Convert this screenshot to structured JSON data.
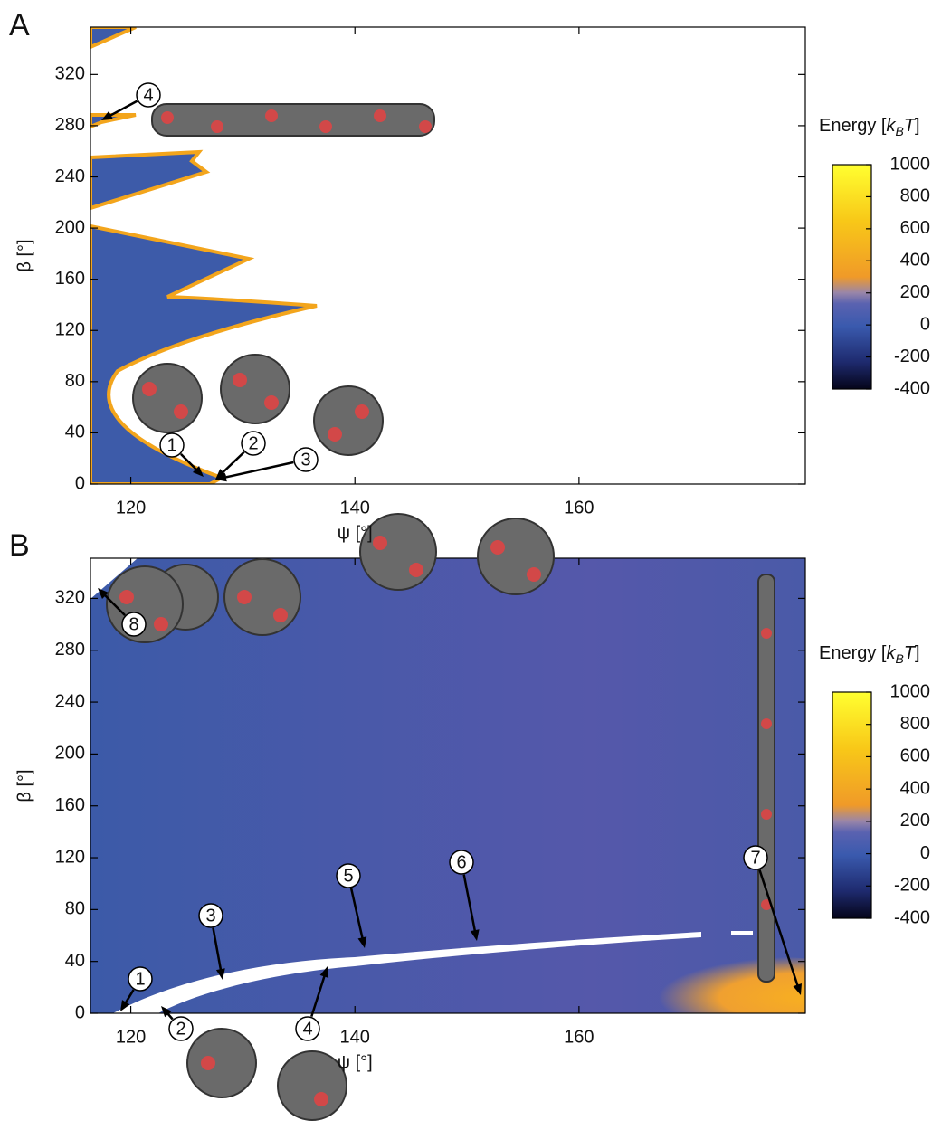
{
  "chart_data": [
    {
      "type": "heatmap",
      "panel": "A",
      "xlabel": "ψ [°]",
      "ylabel": "β [°]",
      "xlim": [
        116.4,
        180.2
      ],
      "ylim": [
        0,
        357
      ],
      "xticks": [
        120,
        140,
        160
      ],
      "yticks": [
        0,
        40,
        80,
        120,
        160,
        200,
        240,
        280,
        320
      ],
      "colorbar": {
        "label_parts": [
          "Energy [",
          "k",
          "B",
          "T",
          "]"
        ],
        "lim": [
          -400,
          1000
        ],
        "ticks": [
          -400,
          -200,
          0,
          200,
          400,
          600,
          800,
          1000
        ]
      },
      "annotations": [
        "1",
        "2",
        "3",
        "4"
      ]
    },
    {
      "type": "heatmap",
      "panel": "B",
      "xlabel": "ψ [°]",
      "ylabel": "β [°]",
      "xlim": [
        116.4,
        180.2
      ],
      "ylim": [
        0,
        351
      ],
      "xticks": [
        120,
        140,
        160
      ],
      "yticks": [
        0,
        40,
        80,
        120,
        160,
        200,
        240,
        280,
        320
      ],
      "colorbar": {
        "label_parts": [
          "Energy [",
          "k",
          "B",
          "T",
          "]"
        ],
        "lim": [
          -400,
          1000
        ],
        "ticks": [
          -400,
          -200,
          0,
          200,
          400,
          600,
          800,
          1000
        ]
      },
      "annotations": [
        "1",
        "2",
        "3",
        "4",
        "5",
        "6",
        "7",
        "8"
      ]
    }
  ]
}
